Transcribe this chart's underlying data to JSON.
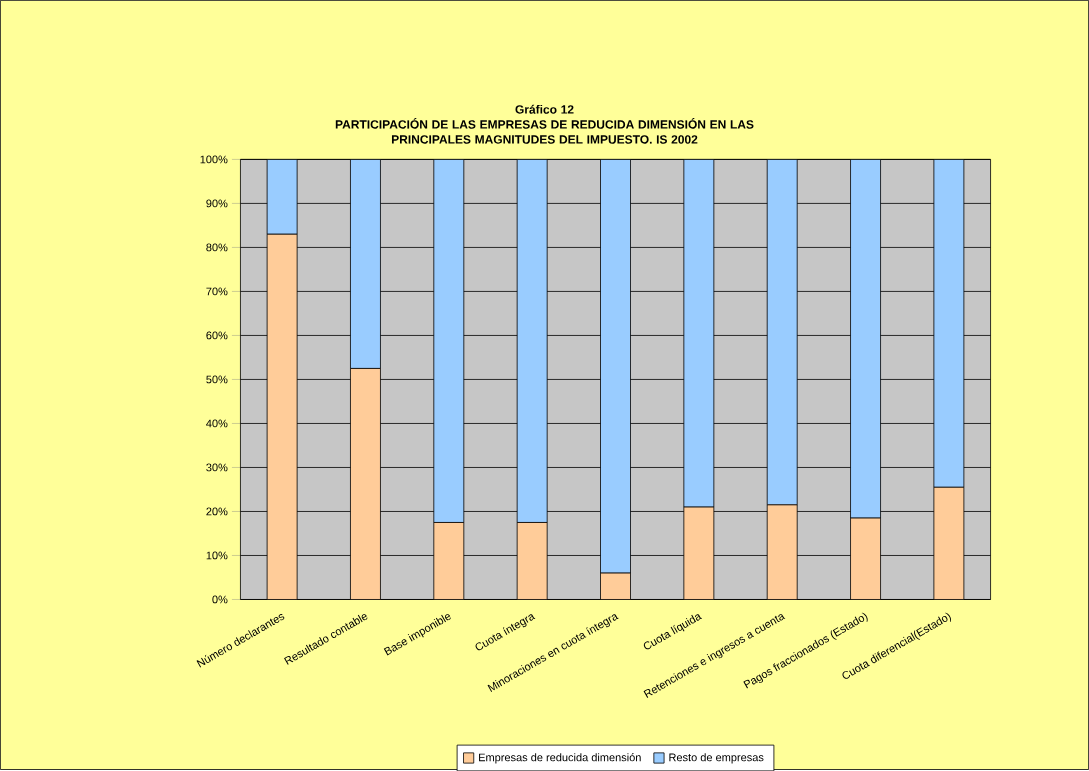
{
  "chart_data": {
    "type": "bar",
    "stacked": true,
    "title": "Gráfico 12\nPARTICIPACIÓN DE LAS EMPRESAS DE REDUCIDA DIMENSIÓN EN LAS\nPRINCIPALES MAGNITUDES DEL IMPUESTO. IS 2002",
    "categories": [
      "Número declarantes",
      "Resultado contable",
      "Base imponible",
      "Cuota íntegra",
      "Minoraciones en cuota íntegra",
      "Cuota líquida",
      "Retenciones e ingresos a cuenta",
      "Pagos fraccionados (Estado)",
      "Cuota diferencial(Estado)"
    ],
    "series": [
      {
        "name": "Empresas de reducida dimensión",
        "color": "#ffcc99",
        "values": [
          83,
          52.5,
          17.5,
          17.5,
          6,
          21,
          21.5,
          18.5,
          25.5
        ]
      },
      {
        "name": "Resto de empresas",
        "color": "#99ccff",
        "values": [
          17,
          47.5,
          82.5,
          82.5,
          94,
          79,
          78.5,
          81.5,
          74.5
        ]
      }
    ],
    "ylim": [
      0,
      100
    ],
    "yticks": [
      {
        "value": 0,
        "label": "0%"
      },
      {
        "value": 10,
        "label": "10%"
      },
      {
        "value": 20,
        "label": "20%"
      },
      {
        "value": 30,
        "label": "30%"
      },
      {
        "value": 40,
        "label": "40%"
      },
      {
        "value": 50,
        "label": "50%"
      },
      {
        "value": 60,
        "label": "60%"
      },
      {
        "value": 70,
        "label": "70%"
      },
      {
        "value": 80,
        "label": "80%"
      },
      {
        "value": 90,
        "label": "90%"
      },
      {
        "value": 100,
        "label": "100%"
      }
    ],
    "grid": "y",
    "legend": "bottom"
  }
}
